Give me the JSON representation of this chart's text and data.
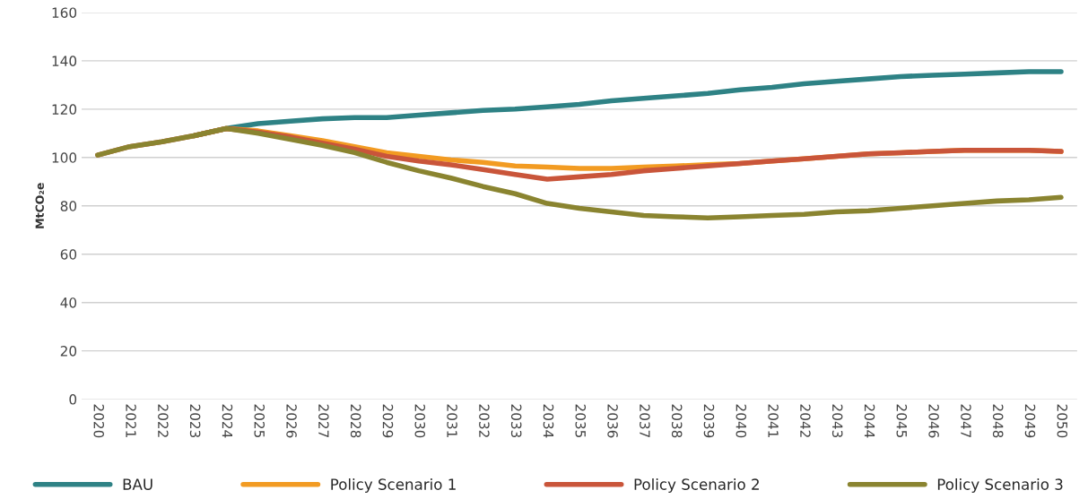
{
  "chart_data": {
    "type": "line",
    "ylabel": "MtCO₂e",
    "categories": [
      "2020",
      "2021",
      "2022",
      "2023",
      "2024",
      "2025",
      "2026",
      "2027",
      "2028",
      "2029",
      "2030",
      "2031",
      "2032",
      "2033",
      "2034",
      "2035",
      "2036",
      "2037",
      "2038",
      "2039",
      "2040",
      "2041",
      "2042",
      "2043",
      "2044",
      "2045",
      "2046",
      "2047",
      "2048",
      "2049",
      "2050"
    ],
    "series": [
      {
        "name": "BAU",
        "color": "#2e8285",
        "values": [
          null,
          null,
          null,
          109,
          112,
          114,
          115,
          116,
          116.5,
          116.5,
          117.5,
          118.5,
          119.5,
          120,
          121,
          122,
          123.5,
          124.5,
          125.5,
          126.5,
          128,
          129,
          130.5,
          131.5,
          132.5,
          133.5,
          134,
          134.5,
          135,
          135.5,
          135.5
        ]
      },
      {
        "name": "Policy Scenario 1",
        "color": "#f29b22",
        "values": [
          null,
          null,
          null,
          109,
          112,
          111,
          109,
          107,
          104.5,
          102,
          100.5,
          99,
          98,
          96.5,
          96,
          95.5,
          95.5,
          96,
          96.5,
          97,
          97.5,
          98.5,
          99.5,
          100.5,
          101.5,
          102,
          102.5,
          103,
          103,
          103,
          102.5
        ]
      },
      {
        "name": "Policy Scenario 2",
        "color": "#c9553a",
        "values": [
          101,
          104.5,
          106.5,
          109,
          112,
          110.5,
          108.5,
          106,
          103.5,
          100.5,
          98.5,
          97,
          95,
          93,
          91,
          92,
          93,
          94.5,
          95.5,
          96.5,
          97.5,
          98.5,
          99.5,
          100.5,
          101.5,
          102,
          102.5,
          103,
          103,
          103,
          102.5
        ]
      },
      {
        "name": "Policy Scenario 3",
        "color": "#8a8430",
        "values": [
          101,
          104.5,
          106.5,
          109,
          112,
          110,
          107.5,
          105,
          102,
          98,
          94.5,
          91.5,
          88,
          85,
          81,
          79,
          77.5,
          76,
          75.5,
          75,
          75.5,
          76,
          76.5,
          77.5,
          78,
          79,
          80,
          81,
          82,
          82.5,
          83.5
        ]
      }
    ],
    "ylim": [
      0,
      160
    ],
    "yticks": [
      0,
      20,
      40,
      60,
      80,
      100,
      120,
      140,
      160
    ],
    "grid": "y",
    "legend": "bottom",
    "marker": "none",
    "line_style": "solid"
  }
}
